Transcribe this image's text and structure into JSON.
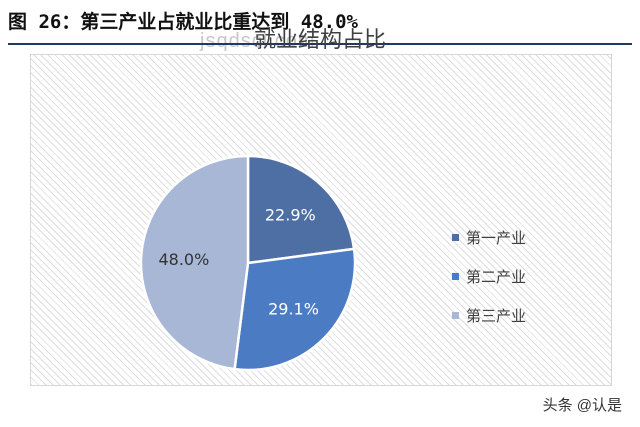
{
  "caption": "图 26：第三产业占就业比重达到 48.0%",
  "watermark": "jsqdsci.com",
  "source_tag": "头条 @认是",
  "chart_data": {
    "type": "pie",
    "title": "就业结构占比",
    "categories": [
      "第一产业",
      "第二产业",
      "第三产业"
    ],
    "values": [
      22.9,
      29.1,
      48.0
    ],
    "labels": [
      "22.9%",
      "29.1%",
      "48.0%"
    ],
    "colors": [
      "#4e6fa3",
      "#4b7bc2",
      "#a8b7d5"
    ],
    "label_colors": [
      "#ffffff",
      "#ffffff",
      "#333333"
    ],
    "legend_position": "right",
    "start_angle": "12 o'clock",
    "direction": "clockwise"
  }
}
